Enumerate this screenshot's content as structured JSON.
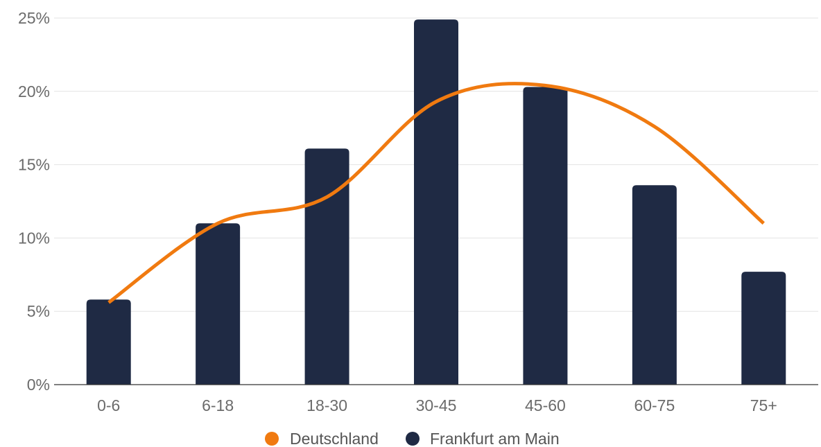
{
  "chart_data": {
    "type": "bar",
    "categories": [
      "0-6",
      "6-18",
      "18-30",
      "30-45",
      "45-60",
      "60-75",
      "75+"
    ],
    "series": [
      {
        "name": "Frankfurt am Main",
        "type": "bar",
        "color": "#1f2a44",
        "values": [
          5.8,
          11.0,
          16.1,
          24.9,
          20.3,
          13.6,
          7.7
        ]
      },
      {
        "name": "Deutschland",
        "type": "line",
        "color": "#f07a10",
        "values": [
          5.6,
          11.0,
          12.8,
          19.3,
          20.4,
          17.6,
          11.0
        ]
      }
    ],
    "ylim": [
      0,
      25
    ],
    "yticks": [
      "0%",
      "5%",
      "10%",
      "15%",
      "20%",
      "25%"
    ],
    "grid": true,
    "legend_position": "bottom-center",
    "legend": [
      "Deutschland",
      "Frankfurt am Main"
    ]
  }
}
